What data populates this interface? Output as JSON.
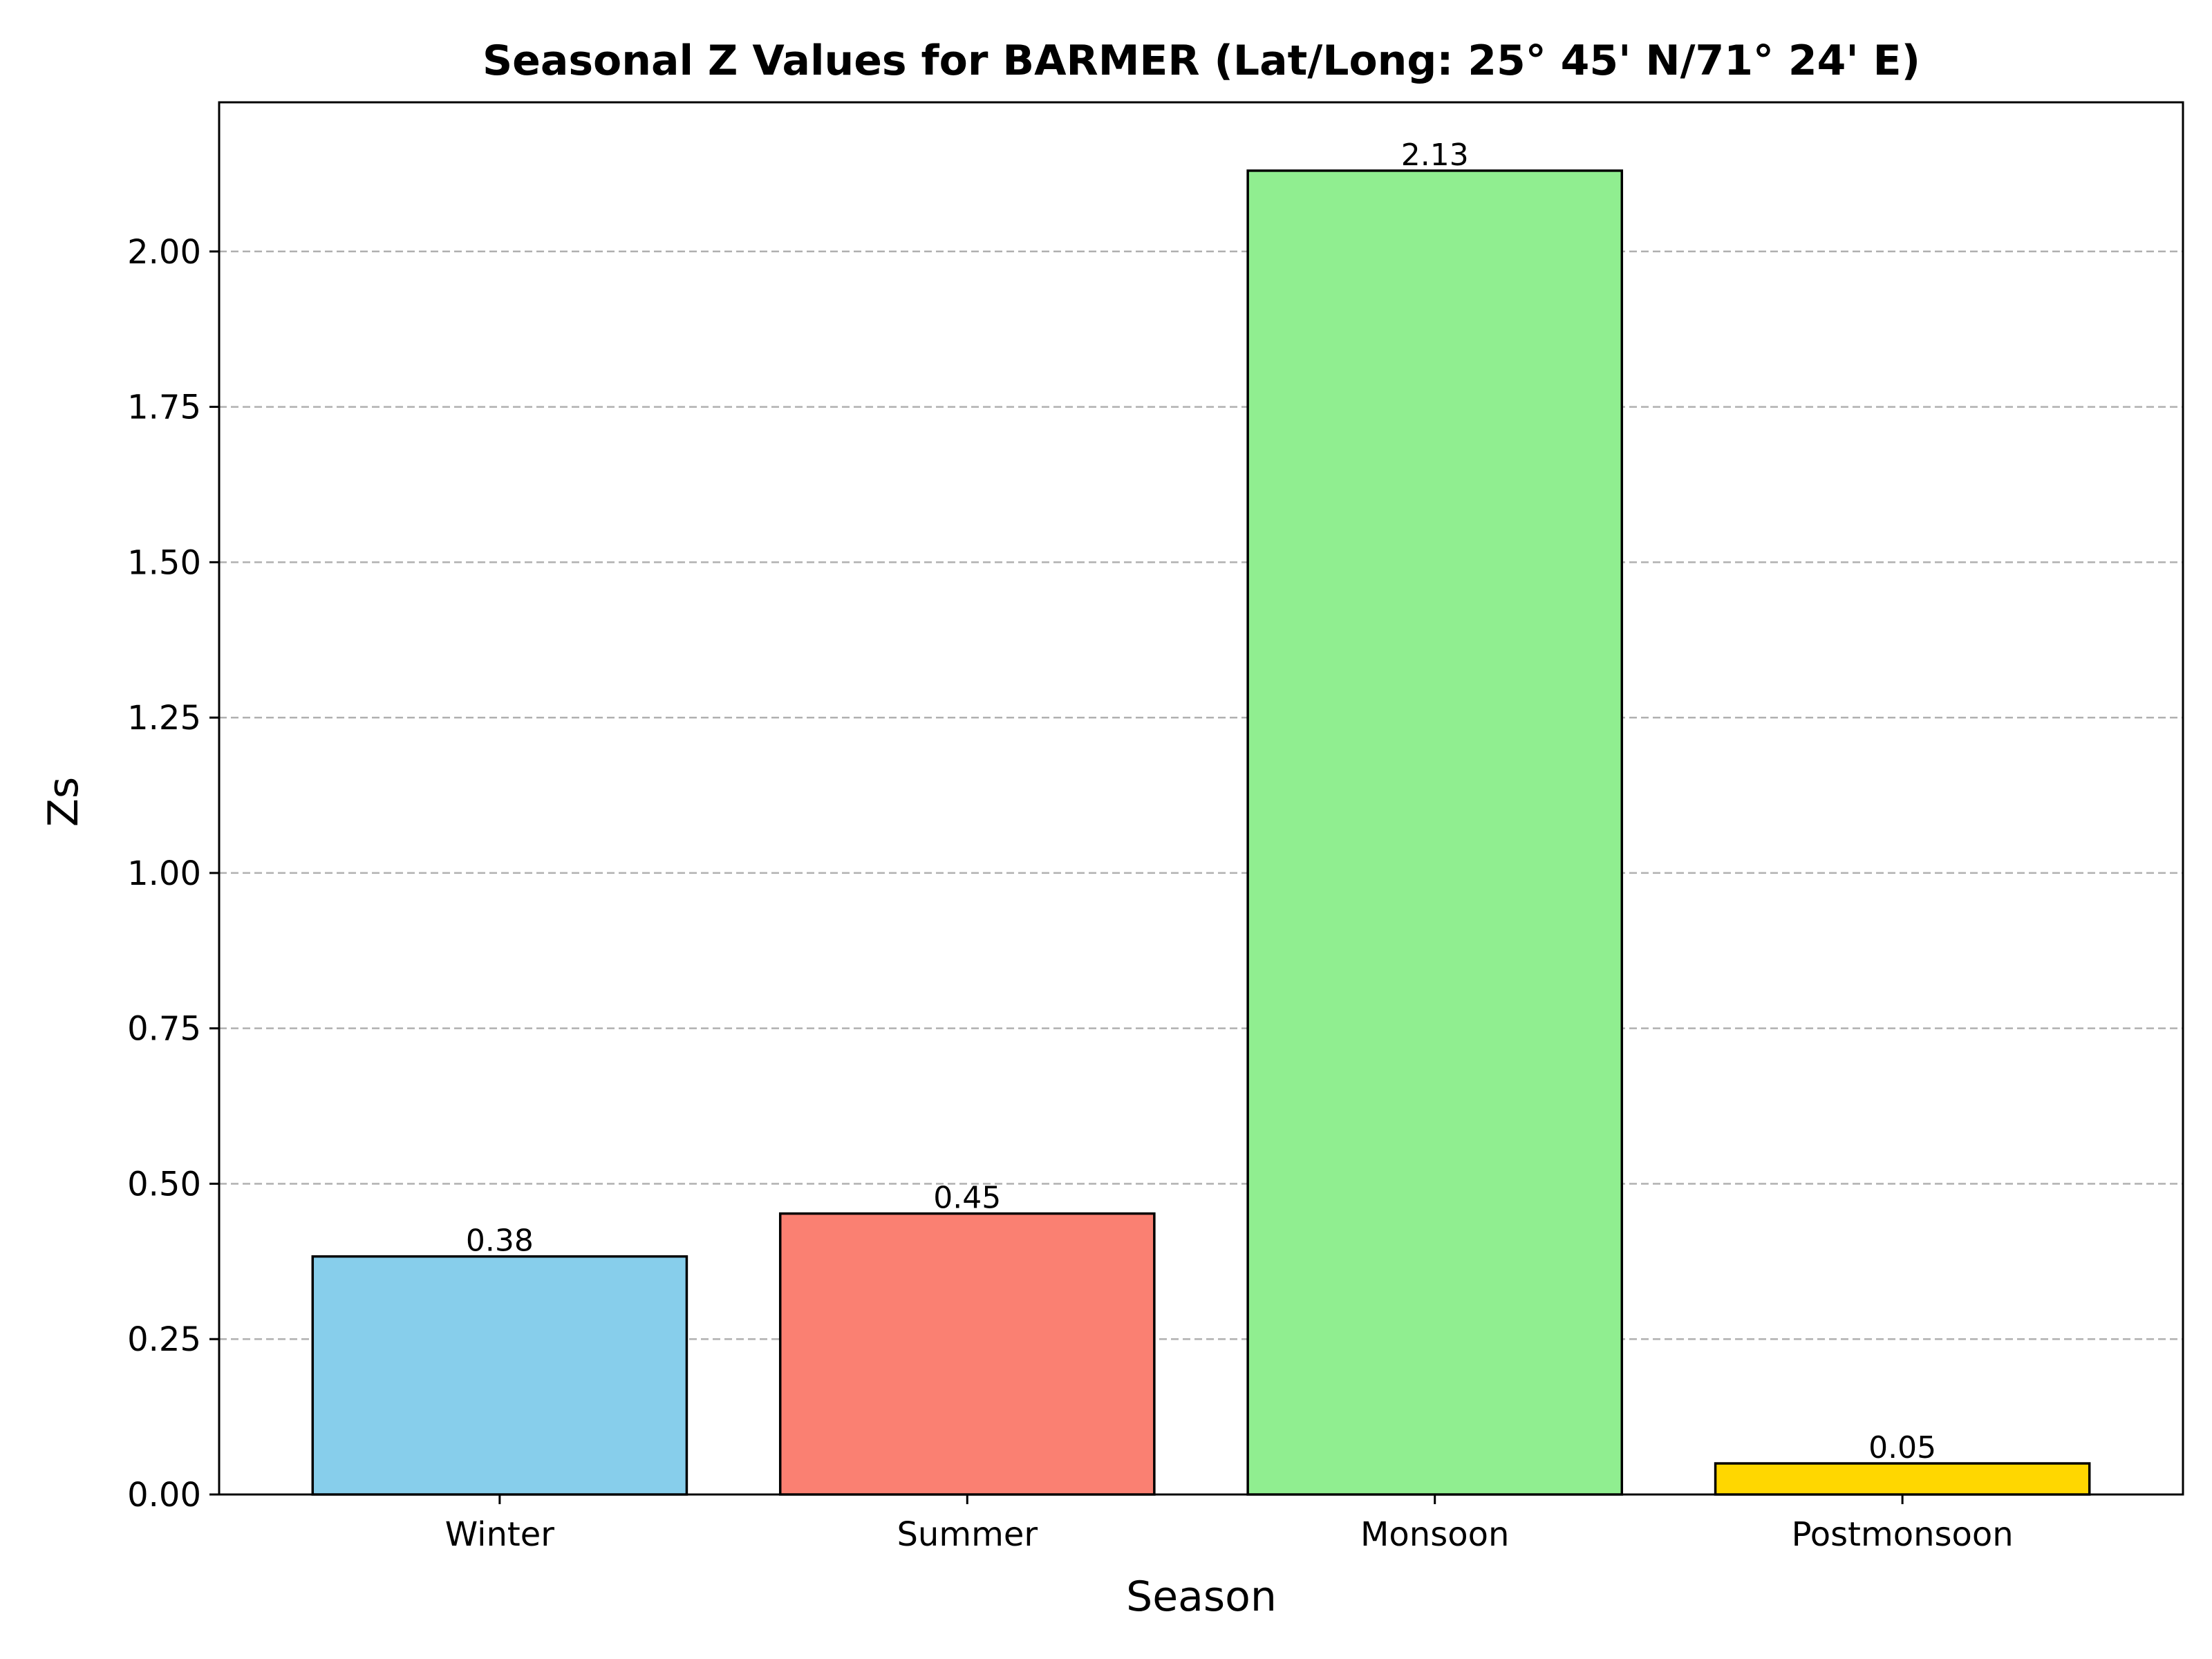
{
  "chart_data": {
    "type": "bar",
    "title": "Seasonal Z Values for BARMER (Lat/Long: 25° 45' N/71° 24' E)",
    "xlabel": "Season",
    "ylabel": "Zs",
    "categories": [
      "Winter",
      "Summer",
      "Monsoon",
      "Postmonsoon"
    ],
    "values": [
      0.383,
      0.452,
      2.13,
      0.05
    ],
    "value_labels": [
      "0.38",
      "0.45",
      "2.13",
      "0.05"
    ],
    "colors": [
      "#87ceeb",
      "#fa8072",
      "#90ee90",
      "#ffd700"
    ],
    "ylim": [
      0,
      2.24
    ],
    "yticks": [
      0,
      0.25,
      0.5,
      0.75,
      1.0,
      1.25,
      1.5,
      1.75,
      2.0
    ],
    "ytick_labels": [
      "0.00",
      "0.25",
      "0.50",
      "0.75",
      "1.00",
      "1.25",
      "1.50",
      "1.75",
      "2.00"
    ],
    "grid": "y-dashed",
    "reference_line": 0
  }
}
